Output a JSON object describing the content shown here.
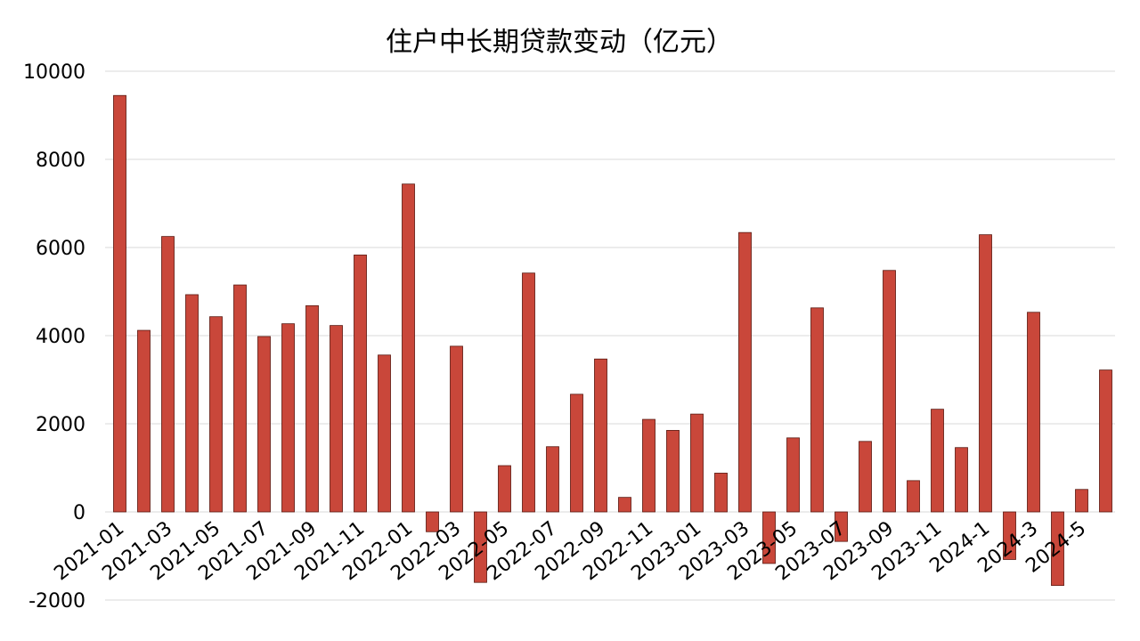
{
  "chart_data": {
    "type": "bar",
    "title": "住户中长期贷款变动（亿元）",
    "xlabel": "",
    "ylabel": "",
    "ylim": [
      -2000,
      10000
    ],
    "yticks": [
      -2000,
      0,
      2000,
      4000,
      6000,
      8000,
      10000
    ],
    "grid": true,
    "legend": "none",
    "bar_color": "#c9473a",
    "categories": [
      "2021-01",
      "2021-02",
      "2021-03",
      "2021-04",
      "2021-05",
      "2021-06",
      "2021-07",
      "2021-08",
      "2021-09",
      "2021-10",
      "2021-11",
      "2021-12",
      "2022-01",
      "2022-02",
      "2022-03",
      "2022-04",
      "2022-05",
      "2022-06",
      "2022-07",
      "2022-08",
      "2022-09",
      "2022-10",
      "2022-11",
      "2022-12",
      "2023-01",
      "2023-02",
      "2023-03",
      "2023-04",
      "2023-05",
      "2023-06",
      "2023-07",
      "2023-08",
      "2023-09",
      "2023-10",
      "2023-11",
      "2023-12",
      "2024-1",
      "2024-2",
      "2024-3",
      "2024-4",
      "2024-5",
      "2024-6"
    ],
    "tick_labels": [
      "2021-01",
      "2021-03",
      "2021-05",
      "2021-07",
      "2021-09",
      "2021-11",
      "2022-01",
      "2022-03",
      "2022-05",
      "2022-07",
      "2022-09",
      "2022-11",
      "2023-01",
      "2023-03",
      "2023-05",
      "2023-07",
      "2023-09",
      "2023-11",
      "2024-1",
      "2024-3",
      "2024-5"
    ],
    "values": [
      9450,
      4120,
      6250,
      4930,
      4430,
      5150,
      3980,
      4270,
      4680,
      4230,
      5830,
      3560,
      7440,
      -450,
      3760,
      -1600,
      1050,
      5420,
      1480,
      2670,
      3470,
      330,
      2100,
      1850,
      2220,
      880,
      6340,
      -1170,
      1680,
      4630,
      -670,
      1600,
      5480,
      710,
      2330,
      1460,
      6290,
      -1080,
      4530,
      -1670,
      510,
      3220
    ]
  }
}
